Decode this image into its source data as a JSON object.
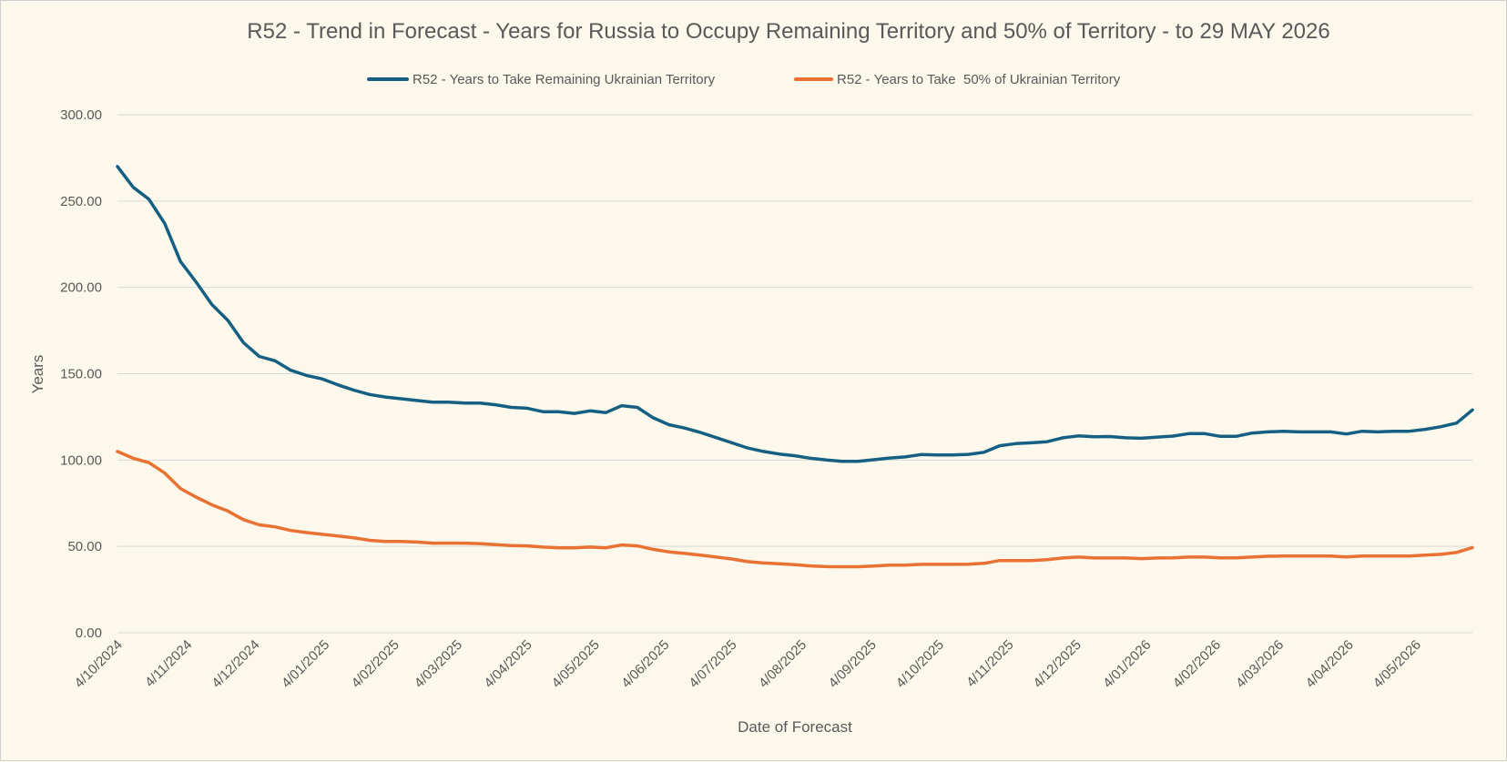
{
  "chart_data": {
    "type": "line",
    "title": "R52 - Trend in Forecast - Years for Russia to Occupy Remaining Territory and 50% of Territory - to 29 MAY 2026",
    "xlabel": "Date of Forecast",
    "ylabel": "Years",
    "ylim": [
      0,
      300
    ],
    "ytick_step": 50,
    "yticks": [
      "0.00",
      "50.00",
      "100.00",
      "150.00",
      "200.00",
      "250.00",
      "300.00"
    ],
    "x_range": [
      "2024-10-04",
      "2026-05-29"
    ],
    "xticks": [
      {
        "date": "2024-10-04",
        "label": "4/10/2024"
      },
      {
        "date": "2024-11-04",
        "label": "4/11/2024"
      },
      {
        "date": "2024-12-04",
        "label": "4/12/2024"
      },
      {
        "date": "2025-01-04",
        "label": "4/01/2025"
      },
      {
        "date": "2025-02-04",
        "label": "4/02/2025"
      },
      {
        "date": "2025-03-04",
        "label": "4/03/2025"
      },
      {
        "date": "2025-04-04",
        "label": "4/04/2025"
      },
      {
        "date": "2025-05-04",
        "label": "4/05/2025"
      },
      {
        "date": "2025-06-04",
        "label": "4/06/2025"
      },
      {
        "date": "2025-07-04",
        "label": "4/07/2025"
      },
      {
        "date": "2025-08-04",
        "label": "4/08/2025"
      },
      {
        "date": "2025-09-04",
        "label": "4/09/2025"
      },
      {
        "date": "2025-10-04",
        "label": "4/10/2025"
      },
      {
        "date": "2025-11-04",
        "label": "4/11/2025"
      },
      {
        "date": "2025-12-04",
        "label": "4/12/2025"
      },
      {
        "date": "2026-01-04",
        "label": "4/01/2026"
      },
      {
        "date": "2026-02-04",
        "label": "4/02/2026"
      },
      {
        "date": "2026-03-04",
        "label": "4/03/2026"
      },
      {
        "date": "2026-04-04",
        "label": "4/04/2026"
      },
      {
        "date": "2026-05-04",
        "label": "4/05/2026"
      }
    ],
    "grid": true,
    "legend_position": "top",
    "series": [
      {
        "name": "R52 - Years to Take Remaining Ukrainian Territory",
        "color": "#156082",
        "points": [
          [
            "2024-10-04",
            270
          ],
          [
            "2024-10-11",
            258
          ],
          [
            "2024-10-18",
            251
          ],
          [
            "2024-10-25",
            237
          ],
          [
            "2024-11-01",
            215
          ],
          [
            "2024-11-08",
            203
          ],
          [
            "2024-11-15",
            190
          ],
          [
            "2024-11-22",
            181
          ],
          [
            "2024-11-29",
            168
          ],
          [
            "2024-12-06",
            160
          ],
          [
            "2024-12-13",
            157.5
          ],
          [
            "2024-12-20",
            152
          ],
          [
            "2024-12-27",
            149
          ],
          [
            "2025-01-03",
            147
          ],
          [
            "2025-01-10",
            143.5
          ],
          [
            "2025-01-17",
            140.5
          ],
          [
            "2025-01-24",
            138
          ],
          [
            "2025-01-31",
            136.5
          ],
          [
            "2025-02-07",
            135.5
          ],
          [
            "2025-02-14",
            134.5
          ],
          [
            "2025-02-21",
            133.5
          ],
          [
            "2025-02-28",
            133.5
          ],
          [
            "2025-03-07",
            133
          ],
          [
            "2025-03-14",
            133
          ],
          [
            "2025-03-21",
            132
          ],
          [
            "2025-03-28",
            130.5
          ],
          [
            "2025-04-04",
            130
          ],
          [
            "2025-04-11",
            128
          ],
          [
            "2025-04-18",
            128
          ],
          [
            "2025-04-25",
            127
          ],
          [
            "2025-05-02",
            128.5
          ],
          [
            "2025-05-09",
            127.5
          ],
          [
            "2025-05-16",
            131.5
          ],
          [
            "2025-05-23",
            130.5
          ],
          [
            "2025-05-30",
            124.5
          ],
          [
            "2025-06-06",
            120.5
          ],
          [
            "2025-06-13",
            118.5
          ],
          [
            "2025-06-20",
            116
          ],
          [
            "2025-06-27",
            113
          ],
          [
            "2025-07-04",
            110
          ],
          [
            "2025-07-11",
            107
          ],
          [
            "2025-07-18",
            105
          ],
          [
            "2025-07-25",
            103.5
          ],
          [
            "2025-08-01",
            102.5
          ],
          [
            "2025-08-08",
            101
          ],
          [
            "2025-08-15",
            100
          ],
          [
            "2025-08-22",
            99.3
          ],
          [
            "2025-08-29",
            99.3
          ],
          [
            "2025-09-05",
            100.2
          ],
          [
            "2025-09-12",
            101.2
          ],
          [
            "2025-09-19",
            101.8
          ],
          [
            "2025-09-26",
            103.2
          ],
          [
            "2025-10-03",
            102.9
          ],
          [
            "2025-10-10",
            102.9
          ],
          [
            "2025-10-17",
            103.3
          ],
          [
            "2025-10-24",
            104.5
          ],
          [
            "2025-10-31",
            108.3
          ],
          [
            "2025-11-07",
            109.5
          ],
          [
            "2025-11-14",
            110
          ],
          [
            "2025-11-21",
            110.6
          ],
          [
            "2025-11-28",
            112.9
          ],
          [
            "2025-12-05",
            114
          ],
          [
            "2025-12-12",
            113.5
          ],
          [
            "2025-12-19",
            113.6
          ],
          [
            "2025-12-26",
            112.9
          ],
          [
            "2026-01-02",
            112.6
          ],
          [
            "2026-01-09",
            113.3
          ],
          [
            "2026-01-16",
            113.9
          ],
          [
            "2026-01-23",
            115.3
          ],
          [
            "2026-01-30",
            115.3
          ],
          [
            "2026-02-06",
            113.7
          ],
          [
            "2026-02-13",
            113.7
          ],
          [
            "2026-02-20",
            115.6
          ],
          [
            "2026-02-27",
            116.3
          ],
          [
            "2026-03-06",
            116.7
          ],
          [
            "2026-03-13",
            116.3
          ],
          [
            "2026-03-20",
            116.3
          ],
          [
            "2026-03-27",
            116.3
          ],
          [
            "2026-04-03",
            115.1
          ],
          [
            "2026-04-10",
            116.7
          ],
          [
            "2026-04-17",
            116.3
          ],
          [
            "2026-04-24",
            116.7
          ],
          [
            "2026-05-01",
            116.7
          ],
          [
            "2026-05-08",
            117.8
          ],
          [
            "2026-05-15",
            119.3
          ],
          [
            "2026-05-22",
            121.4
          ],
          [
            "2026-05-29",
            129
          ]
        ]
      },
      {
        "name": "R52 - Years to Take  50% of Ukrainian Territory",
        "color": "#e97132",
        "points": [
          [
            "2024-10-04",
            105
          ],
          [
            "2024-10-11",
            101
          ],
          [
            "2024-10-18",
            98.5
          ],
          [
            "2024-10-25",
            92.5
          ],
          [
            "2024-11-01",
            83.5
          ],
          [
            "2024-11-08",
            78.5
          ],
          [
            "2024-11-15",
            74
          ],
          [
            "2024-11-22",
            70.5
          ],
          [
            "2024-11-29",
            65.5
          ],
          [
            "2024-12-06",
            62.5
          ],
          [
            "2024-12-13",
            61.3
          ],
          [
            "2024-12-20",
            59.2
          ],
          [
            "2024-12-27",
            58
          ],
          [
            "2025-01-03",
            57
          ],
          [
            "2025-01-10",
            56
          ],
          [
            "2025-01-17",
            55
          ],
          [
            "2025-01-24",
            53.5
          ],
          [
            "2025-01-31",
            52.9
          ],
          [
            "2025-02-07",
            52.9
          ],
          [
            "2025-02-14",
            52.5
          ],
          [
            "2025-02-21",
            51.9
          ],
          [
            "2025-02-28",
            51.9
          ],
          [
            "2025-03-07",
            51.9
          ],
          [
            "2025-03-14",
            51.6
          ],
          [
            "2025-03-21",
            51
          ],
          [
            "2025-03-28",
            50.5
          ],
          [
            "2025-04-04",
            50.3
          ],
          [
            "2025-04-11",
            49.6
          ],
          [
            "2025-04-18",
            49.2
          ],
          [
            "2025-04-25",
            49.2
          ],
          [
            "2025-05-02",
            49.6
          ],
          [
            "2025-05-09",
            49.2
          ],
          [
            "2025-05-16",
            50.8
          ],
          [
            "2025-05-23",
            50.3
          ],
          [
            "2025-05-30",
            48.3
          ],
          [
            "2025-06-06",
            46.8
          ],
          [
            "2025-06-13",
            45.9
          ],
          [
            "2025-06-20",
            44.9
          ],
          [
            "2025-06-27",
            43.8
          ],
          [
            "2025-07-04",
            42.7
          ],
          [
            "2025-07-11",
            41.2
          ],
          [
            "2025-07-18",
            40.4
          ],
          [
            "2025-07-25",
            39.9
          ],
          [
            "2025-08-01",
            39.4
          ],
          [
            "2025-08-08",
            38.7
          ],
          [
            "2025-08-15",
            38.3
          ],
          [
            "2025-08-22",
            38.2
          ],
          [
            "2025-08-29",
            38.2
          ],
          [
            "2025-09-05",
            38.6
          ],
          [
            "2025-09-12",
            39.2
          ],
          [
            "2025-09-19",
            39.2
          ],
          [
            "2025-09-26",
            39.6
          ],
          [
            "2025-10-03",
            39.6
          ],
          [
            "2025-10-10",
            39.6
          ],
          [
            "2025-10-17",
            39.7
          ],
          [
            "2025-10-24",
            40.2
          ],
          [
            "2025-10-31",
            41.8
          ],
          [
            "2025-11-07",
            41.8
          ],
          [
            "2025-11-14",
            41.8
          ],
          [
            "2025-11-21",
            42.3
          ],
          [
            "2025-11-28",
            43.3
          ],
          [
            "2025-12-05",
            43.8
          ],
          [
            "2025-12-12",
            43.3
          ],
          [
            "2025-12-19",
            43.3
          ],
          [
            "2025-12-26",
            43.3
          ],
          [
            "2026-01-02",
            42.9
          ],
          [
            "2026-01-09",
            43.3
          ],
          [
            "2026-01-16",
            43.4
          ],
          [
            "2026-01-23",
            43.8
          ],
          [
            "2026-01-30",
            43.8
          ],
          [
            "2026-02-06",
            43.4
          ],
          [
            "2026-02-13",
            43.4
          ],
          [
            "2026-02-20",
            43.8
          ],
          [
            "2026-02-27",
            44.3
          ],
          [
            "2026-03-06",
            44.4
          ],
          [
            "2026-03-13",
            44.4
          ],
          [
            "2026-03-20",
            44.4
          ],
          [
            "2026-03-27",
            44.4
          ],
          [
            "2026-04-03",
            43.9
          ],
          [
            "2026-04-10",
            44.4
          ],
          [
            "2026-04-17",
            44.4
          ],
          [
            "2026-04-24",
            44.4
          ],
          [
            "2026-05-01",
            44.4
          ],
          [
            "2026-05-08",
            44.9
          ],
          [
            "2026-05-15",
            45.4
          ],
          [
            "2026-05-22",
            46.5
          ],
          [
            "2026-05-29",
            49.3
          ]
        ]
      }
    ]
  }
}
